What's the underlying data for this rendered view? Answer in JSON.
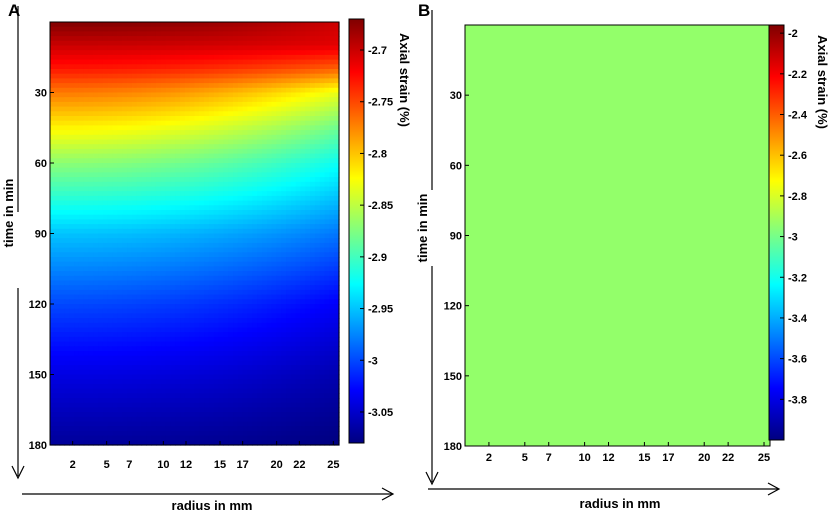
{
  "chart_data": [
    {
      "panel_label": "A",
      "type": "heatmap",
      "xlabel": "radius in mm",
      "ylabel": "time in min",
      "colorbar_label": "Axial strain (%)",
      "x_ticks": [
        "2",
        "5",
        "7",
        "10",
        "12",
        "15",
        "17",
        "20",
        "22",
        "25"
      ],
      "y_ticks": [
        "30",
        "60",
        "90",
        "120",
        "150",
        "180"
      ],
      "xlim": [
        0,
        25.5
      ],
      "ylim": [
        0,
        180
      ],
      "y_reversed": true,
      "colorbar_ticks": [
        "-2.7",
        "-2.75",
        "-2.8",
        "-2.85",
        "-2.9",
        "-2.95",
        "-3",
        "-3.05"
      ],
      "colorbar_range": [
        -3.08,
        -2.67
      ],
      "colormap": "jet",
      "field": {
        "times": [
          0,
          10,
          20,
          30,
          45,
          60,
          90,
          120,
          150,
          180
        ],
        "values_at_radius_0": [
          -2.67,
          -2.7,
          -2.73,
          -2.77,
          -2.82,
          -2.87,
          -2.95,
          -3.0,
          -3.04,
          -3.07
        ],
        "values_at_radius_25": [
          -2.7,
          -2.71,
          -2.76,
          -2.83,
          -2.88,
          -2.92,
          -2.98,
          -3.03,
          -3.06,
          -3.08
        ]
      }
    },
    {
      "panel_label": "B",
      "type": "heatmap",
      "xlabel": "radius in mm",
      "ylabel": "time in min",
      "colorbar_label": "Axial strain (%)",
      "x_ticks": [
        "2",
        "5",
        "7",
        "10",
        "12",
        "15",
        "17",
        "20",
        "22",
        "25"
      ],
      "y_ticks": [
        "30",
        "60",
        "90",
        "120",
        "150",
        "180"
      ],
      "xlim": [
        0,
        25.5
      ],
      "ylim": [
        0,
        180
      ],
      "y_reversed": true,
      "colorbar_ticks": [
        "-2",
        "-2.2",
        "-2.4",
        "-2.6",
        "-2.8",
        "-3",
        "-3.2",
        "-3.4",
        "-3.6",
        "-3.8"
      ],
      "colorbar_range": [
        -4.0,
        -1.96
      ],
      "colormap": "jet",
      "uniform_value": -2.98,
      "fill_color": "#93ff6a"
    }
  ]
}
